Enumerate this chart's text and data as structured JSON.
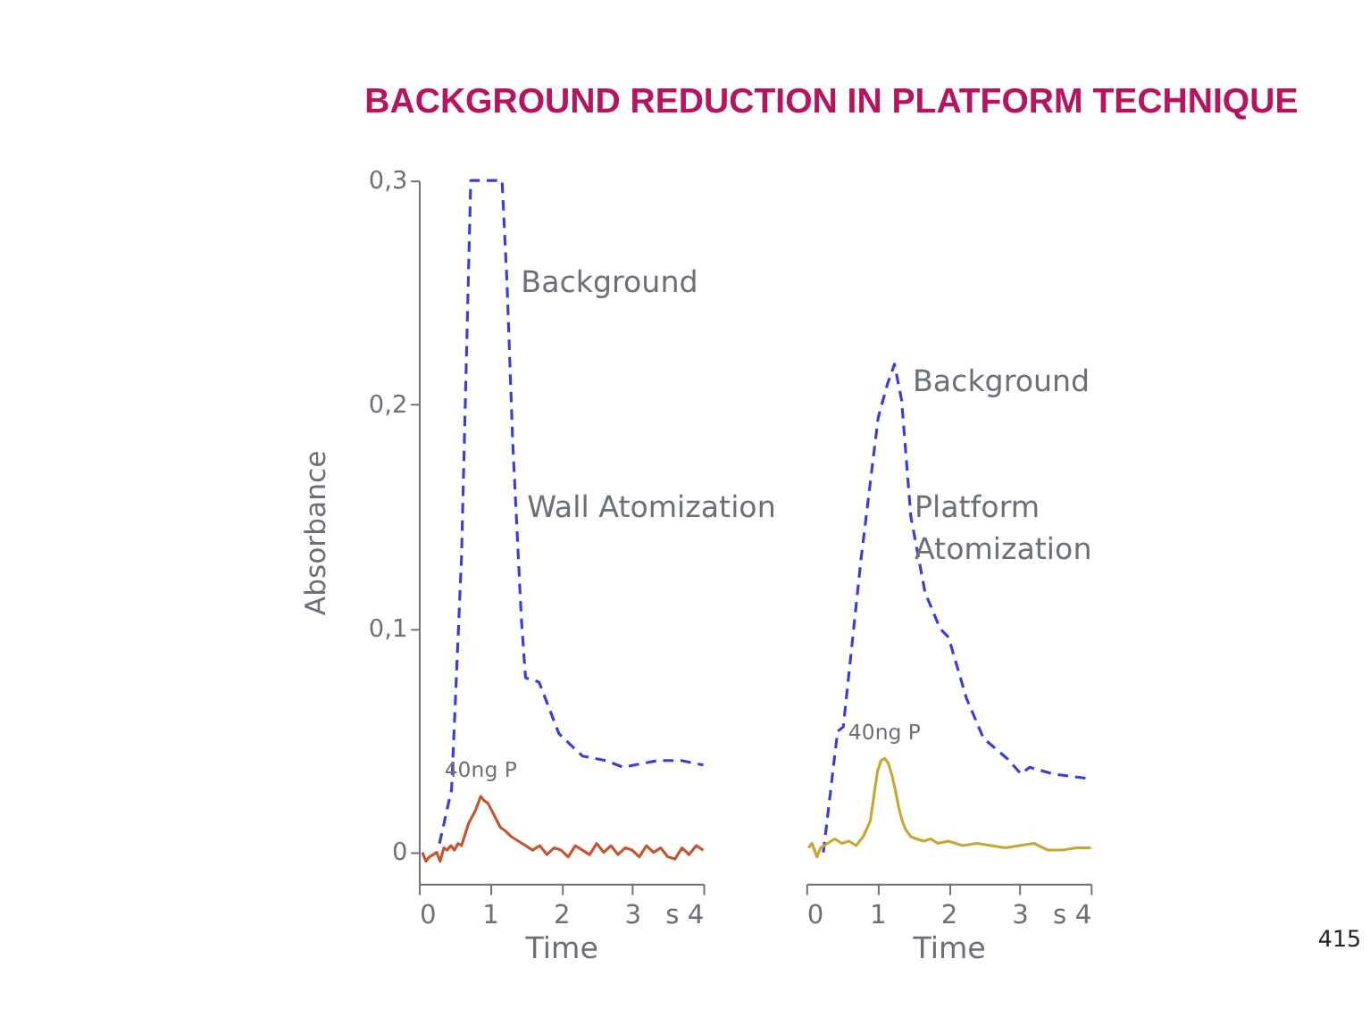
{
  "chart_data": [
    {
      "type": "line",
      "title": "BACKGROUND REDUCTION IN PLATFORM TECHNIQUE",
      "xlabel": "Time",
      "ylabel": "Absorbance",
      "xlim": [
        0,
        4
      ],
      "xticks": [
        0,
        1,
        2,
        3,
        {
          "value": 4,
          "label": "s 4"
        }
      ],
      "ylim": [
        -0.014,
        0.3
      ],
      "yticks": [
        0,
        {
          "value": 0.1,
          "label": "0,1"
        },
        {
          "value": 0.2,
          "label": "0,2"
        },
        {
          "value": 0.3,
          "label": "0,3"
        }
      ],
      "grid": false,
      "series": [
        {
          "color": "#3b3bdc",
          "line_style": "dashed",
          "x": [
            0.29,
            0.46,
            0.6,
            0.73,
            1.17,
            1.24,
            1.32,
            1.44,
            1.5,
            1.69,
            1.97,
            2.3,
            2.63,
            2.87,
            3.36,
            3.69,
            4.0
          ],
          "values": [
            0.004,
            0.028,
            0.132,
            0.3,
            0.3,
            0.254,
            0.183,
            0.105,
            0.078,
            0.076,
            0.053,
            0.043,
            0.041,
            0.038,
            0.041,
            0.041,
            0.039
          ]
        },
        {
          "color": "#c4552e",
          "line_style": "solid",
          "x": [
            0.05,
            0.1,
            0.15,
            0.2,
            0.25,
            0.3,
            0.35,
            0.4,
            0.45,
            0.5,
            0.55,
            0.6,
            0.65,
            0.7,
            0.75,
            0.8,
            0.87,
            0.92,
            0.97,
            1.02,
            1.1,
            1.15,
            1.2,
            1.3,
            1.4,
            1.5,
            1.6,
            1.7,
            1.8,
            1.9,
            2.0,
            2.1,
            2.2,
            2.3,
            2.4,
            2.5,
            2.6,
            2.7,
            2.8,
            2.9,
            3.0,
            3.1,
            3.2,
            3.3,
            3.4,
            3.5,
            3.6,
            3.7,
            3.8,
            3.9,
            4.0
          ],
          "values": [
            0.0,
            -0.004,
            -0.002,
            -0.001,
            0.0,
            -0.004,
            0.002,
            0.001,
            0.003,
            0.001,
            0.004,
            0.003,
            0.008,
            0.013,
            0.016,
            0.019,
            0.025,
            0.023,
            0.022,
            0.019,
            0.014,
            0.011,
            0.01,
            0.007,
            0.005,
            0.003,
            0.001,
            0.003,
            -0.001,
            0.002,
            0.001,
            -0.002,
            0.003,
            0.001,
            -0.001,
            0.004,
            0.0,
            0.003,
            -0.001,
            0.002,
            0.001,
            -0.002,
            0.003,
            0.0,
            0.002,
            -0.002,
            -0.003,
            0.002,
            -0.001,
            0.003,
            0.001
          ]
        }
      ],
      "annotations": [
        {
          "text": "Background",
          "x": 1.24,
          "y": 0.254
        },
        {
          "text": "40ng P",
          "x": 0.87,
          "y": 0.025
        },
        "Wall Atomization"
      ]
    },
    {
      "type": "line",
      "xlabel": "Time",
      "xlim": [
        0,
        4
      ],
      "xticks": [
        0,
        1,
        2,
        3,
        {
          "value": 4,
          "label": "s 4"
        }
      ],
      "ylim": [
        -0.014,
        0.3
      ],
      "tick_labels": "x",
      "grid": false,
      "series": [
        {
          "color": "#3b3bdc",
          "line_style": "dashed",
          "x": [
            0.24,
            0.44,
            0.52,
            0.77,
            1.01,
            1.14,
            1.24,
            1.34,
            1.47,
            1.67,
            1.88,
            2.0,
            2.25,
            2.49,
            2.82,
            3.02,
            3.14,
            3.47,
            3.96
          ],
          "values": [
            0.0,
            0.054,
            0.056,
            0.131,
            0.194,
            0.209,
            0.218,
            0.202,
            0.15,
            0.116,
            0.1,
            0.096,
            0.069,
            0.051,
            0.042,
            0.035,
            0.038,
            0.035,
            0.033
          ]
        },
        {
          "color": "#c9a631",
          "line_style": "solid",
          "x": [
            0.03,
            0.08,
            0.15,
            0.2,
            0.3,
            0.4,
            0.5,
            0.6,
            0.7,
            0.8,
            0.9,
            0.95,
            1.0,
            1.05,
            1.1,
            1.15,
            1.2,
            1.25,
            1.3,
            1.35,
            1.4,
            1.47,
            1.55,
            1.65,
            1.75,
            1.85,
            2.0,
            2.2,
            2.4,
            2.6,
            2.8,
            3.0,
            3.2,
            3.4,
            3.6,
            3.8,
            4.0
          ],
          "values": [
            0.002,
            0.004,
            -0.002,
            0.002,
            0.004,
            0.006,
            0.004,
            0.005,
            0.003,
            0.007,
            0.014,
            0.025,
            0.036,
            0.041,
            0.042,
            0.04,
            0.035,
            0.028,
            0.02,
            0.014,
            0.01,
            0.007,
            0.006,
            0.005,
            0.006,
            0.004,
            0.005,
            0.003,
            0.004,
            0.003,
            0.002,
            0.003,
            0.004,
            0.001,
            0.001,
            0.002,
            0.002
          ]
        }
      ],
      "annotations": [
        {
          "text": "Background",
          "x": 1.3,
          "y": 0.21
        },
        {
          "text": "40ng P",
          "x": 1.1,
          "y": 0.042
        },
        "Platform\nAtomization",
        "415"
      ]
    }
  ]
}
